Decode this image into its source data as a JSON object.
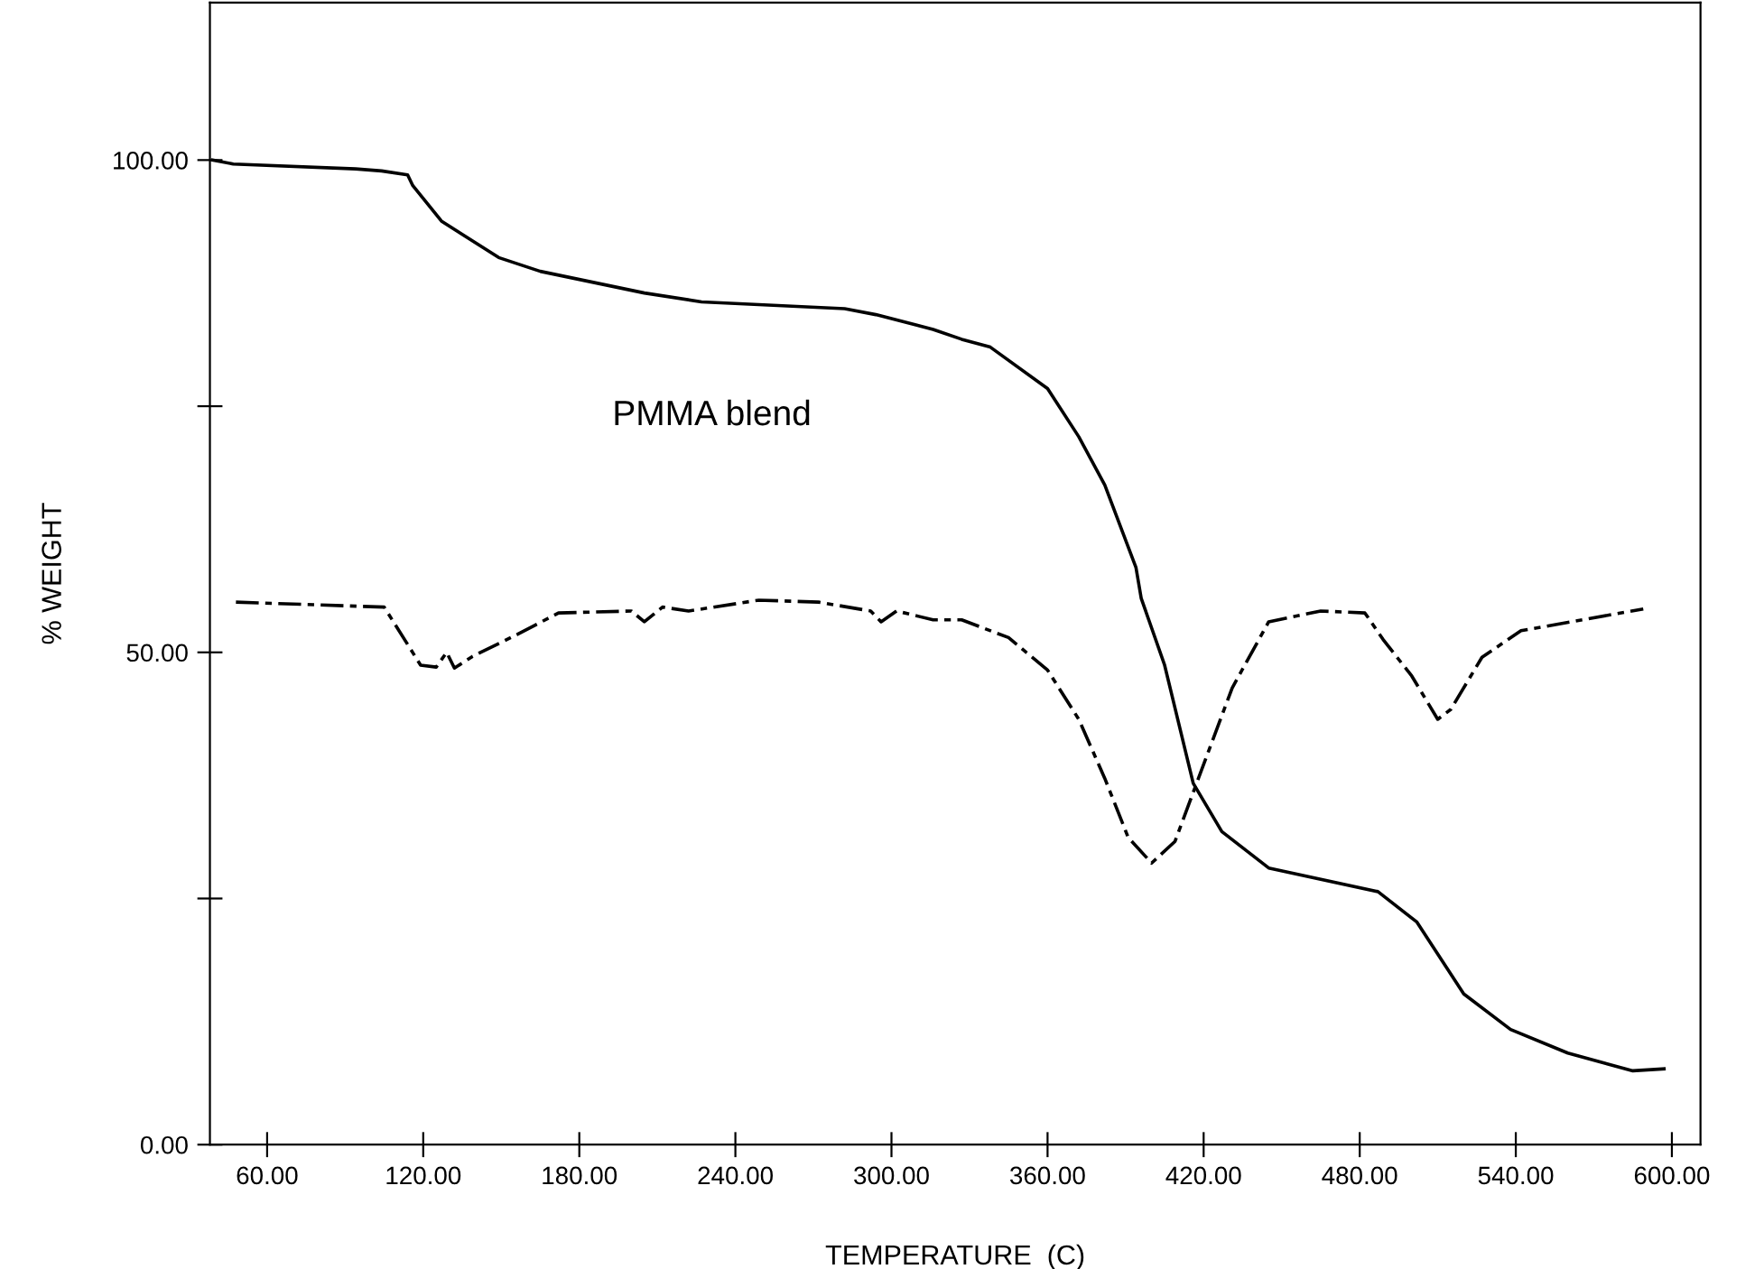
{
  "chart_data": {
    "type": "line",
    "xlabel": "TEMPERATURE  (C)",
    "ylabel": "% WEIGHT",
    "annotations": [
      "PMMA blend"
    ],
    "xlim": [
      38,
      611
    ],
    "ylim": [
      0,
      116
    ],
    "xticks": [
      {
        "value": 60,
        "label": "60.00"
      },
      {
        "value": 120,
        "label": "120.00"
      },
      {
        "value": 180,
        "label": "180.00"
      },
      {
        "value": 240,
        "label": "240.00"
      },
      {
        "value": 300,
        "label": "300.00"
      },
      {
        "value": 360,
        "label": "360.00"
      },
      {
        "value": 420,
        "label": "420.00"
      },
      {
        "value": 480,
        "label": "480.00"
      },
      {
        "value": 540,
        "label": "540.00"
      },
      {
        "value": 600,
        "label": "600.00"
      }
    ],
    "yticks": [
      {
        "value": 0,
        "label": "0.00"
      },
      {
        "value": 25,
        "label": null
      },
      {
        "value": 50,
        "label": "50.00"
      },
      {
        "value": 75,
        "label": null
      },
      {
        "value": 100,
        "label": "100.00"
      }
    ],
    "grid": false,
    "legend": false,
    "series": [
      {
        "color": "#000000",
        "line_style": "solid",
        "x": [
          39,
          47,
          94,
          104,
          114,
          116,
          127,
          149,
          165,
          205,
          227,
          282,
          294,
          316,
          327,
          338,
          360,
          372,
          382,
          394,
          396,
          405,
          416,
          427,
          445,
          487,
          502,
          520,
          538,
          560,
          585,
          597
        ],
        "values": [
          100,
          99.6,
          99.1,
          98.9,
          98.5,
          97.4,
          93.8,
          90.1,
          88.7,
          86.5,
          85.6,
          84.9,
          84.3,
          82.8,
          81.8,
          81.0,
          76.8,
          71.9,
          67.0,
          58.6,
          55.5,
          48.7,
          36.7,
          31.8,
          28.1,
          25.7,
          22.6,
          15.3,
          11.7,
          9.3,
          7.5,
          7.7
        ]
      },
      {
        "color": "#000000",
        "line_style": "dashed",
        "x": [
          48,
          105,
          119,
          125,
          129,
          132,
          139,
          156,
          172,
          200,
          205,
          212,
          222,
          249,
          272,
          292,
          296,
          302,
          316,
          327,
          345,
          360,
          372,
          382,
          391,
          400,
          409,
          418,
          431,
          445,
          465,
          482,
          489,
          500,
          510,
          515,
          527,
          542,
          589
        ],
        "values": [
          55.1,
          54.6,
          48.7,
          48.5,
          50.0,
          48.4,
          49.6,
          51.8,
          54.0,
          54.2,
          53.1,
          54.6,
          54.2,
          55.3,
          55.1,
          54.2,
          53.1,
          54.2,
          53.3,
          53.3,
          51.5,
          48.2,
          43.2,
          37.2,
          31.2,
          28.6,
          30.8,
          37.2,
          46.4,
          53.1,
          54.2,
          54.0,
          51.3,
          47.6,
          43.2,
          44.2,
          49.5,
          52.2,
          54.4
        ]
      }
    ]
  }
}
